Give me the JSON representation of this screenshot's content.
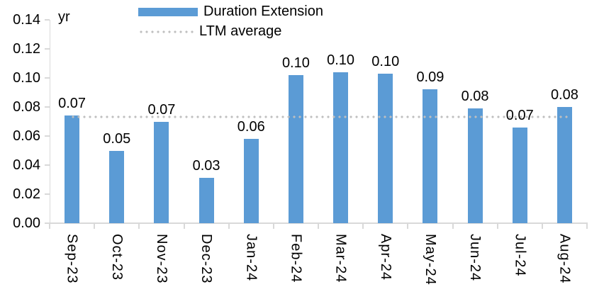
{
  "chart_data": {
    "type": "bar",
    "title": "",
    "unit_label": "yr",
    "categories": [
      "Sep-23",
      "Oct-23",
      "Nov-23",
      "Dec-23",
      "Jan-24",
      "Feb-24",
      "Mar-24",
      "Apr-24",
      "May-24",
      "Jun-24",
      "Jul-24",
      "Aug-24"
    ],
    "series": [
      {
        "name": "Duration Extension",
        "type": "bar",
        "color": "#5B9BD5",
        "values": [
          0.074,
          0.05,
          0.07,
          0.031,
          0.058,
          0.102,
          0.104,
          0.103,
          0.092,
          0.079,
          0.066,
          0.08
        ],
        "data_labels": [
          "0.07",
          "0.05",
          "0.07",
          "0.03",
          "0.06",
          "0.10",
          "0.10",
          "0.10",
          "0.09",
          "0.08",
          "0.07",
          "0.08"
        ]
      },
      {
        "name": "LTM average",
        "type": "line",
        "line_style": "dotted",
        "color": "#BFBFBF",
        "value": 0.073
      }
    ],
    "legend": [
      {
        "label": "Duration Extension",
        "swatch": "bar",
        "color": "#5B9BD5"
      },
      {
        "label": "LTM average",
        "swatch": "dotted-line",
        "color": "#BFBFBF"
      }
    ],
    "legend_position": "top",
    "grid": false,
    "y_axis": {
      "min": 0,
      "max": 0.14,
      "step": 0.02,
      "tick_labels": [
        "0.00",
        "0.02",
        "0.04",
        "0.06",
        "0.08",
        "0.10",
        "0.12",
        "0.14"
      ]
    },
    "axis_color": "#D9D9D9",
    "text_color": "#000000"
  }
}
